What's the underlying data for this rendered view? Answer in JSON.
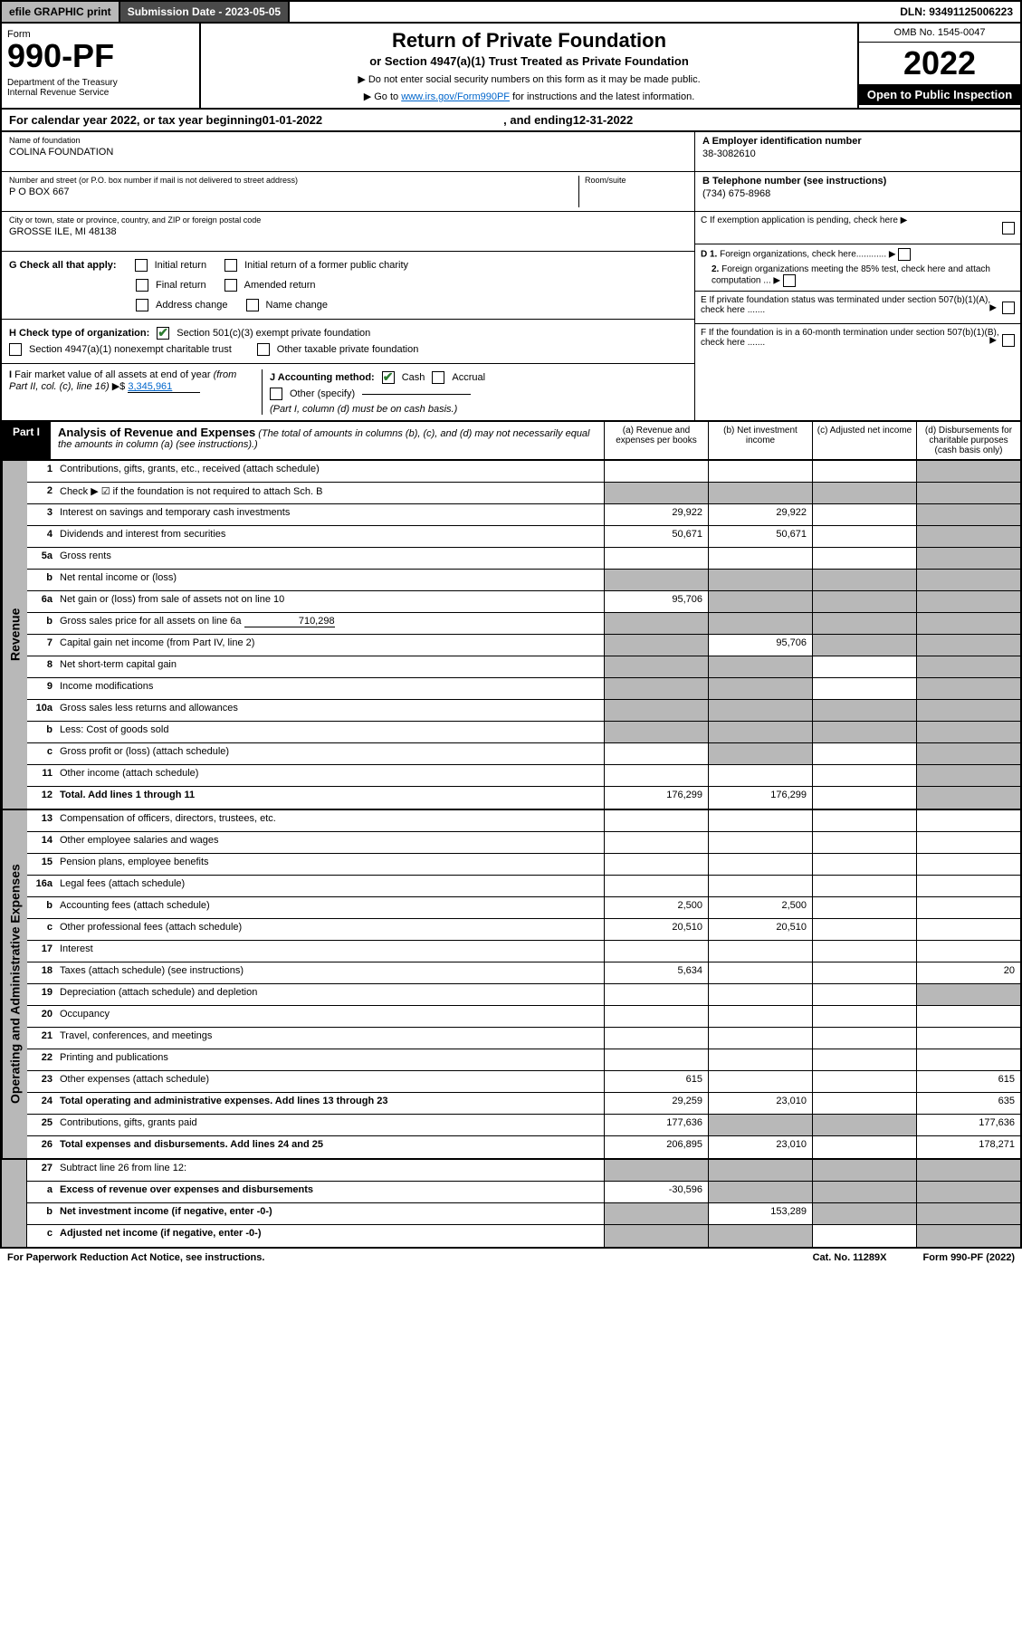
{
  "topbar": {
    "efile": "efile GRAPHIC print",
    "submission_label": "Submission Date - 2023-05-05",
    "dln": "DLN: 93491125006223"
  },
  "header": {
    "form_word": "Form",
    "form_number": "990-PF",
    "dept": "Department of the Treasury\nInternal Revenue Service",
    "title": "Return of Private Foundation",
    "subtitle": "or Section 4947(a)(1) Trust Treated as Private Foundation",
    "instr1": "▶ Do not enter social security numbers on this form as it may be made public.",
    "instr2_pre": "▶ Go to ",
    "instr2_link": "www.irs.gov/Form990PF",
    "instr2_post": " for instructions and the latest information.",
    "omb": "OMB No. 1545-0047",
    "year": "2022",
    "inspection": "Open to Public Inspection"
  },
  "calendar": {
    "text_pre": "For calendar year 2022, or tax year beginning ",
    "begin": "01-01-2022",
    "text_mid": ", and ending ",
    "end": "12-31-2022"
  },
  "foundation": {
    "name_label": "Name of foundation",
    "name": "COLINA FOUNDATION",
    "address_label": "Number and street (or P.O. box number if mail is not delivered to street address)",
    "room_label": "Room/suite",
    "address": "P O BOX 667",
    "city_label": "City or town, state or province, country, and ZIP or foreign postal code",
    "city": "GROSSE ILE, MI  48138",
    "ein_label": "A Employer identification number",
    "ein": "38-3082610",
    "phone_label": "B Telephone number (see instructions)",
    "phone": "(734) 675-8968"
  },
  "checks": {
    "g_label": "G Check all that apply:",
    "initial_return": "Initial return",
    "initial_former": "Initial return of a former public charity",
    "final_return": "Final return",
    "amended": "Amended return",
    "address_change": "Address change",
    "name_change": "Name change",
    "h_label": "H Check type of organization:",
    "h_501c3": "Section 501(c)(3) exempt private foundation",
    "h_4947": "Section 4947(a)(1) nonexempt charitable trust",
    "h_other_taxable": "Other taxable private foundation",
    "i_label": "I Fair market value of all assets at end of year (from Part II, col. (c), line 16) ▶$",
    "i_value": "3,345,961",
    "j_label": "J Accounting method:",
    "j_cash": "Cash",
    "j_accrual": "Accrual",
    "j_other": "Other (specify)",
    "j_note": "(Part I, column (d) must be on cash basis.)"
  },
  "right_boxes": {
    "c": "C If exemption application is pending, check here ▶",
    "d1": "D 1. Foreign organizations, check here............",
    "d2": "2. Foreign organizations meeting the 85% test, check here and attach computation ...",
    "e": "E If private foundation status was terminated under section 507(b)(1)(A), check here .......",
    "f": "F If the foundation is in a 60-month termination under section 507(b)(1)(B), check here ......."
  },
  "part1": {
    "label": "Part I",
    "title": "Analysis of Revenue and Expenses",
    "note": "(The total of amounts in columns (b), (c), and (d) may not necessarily equal the amounts in column (a) (see instructions).)",
    "col_a": "(a) Revenue and expenses per books",
    "col_b": "(b) Net investment income",
    "col_c": "(c) Adjusted net income",
    "col_d": "(d) Disbursements for charitable purposes (cash basis only)"
  },
  "side_labels": {
    "revenue": "Revenue",
    "expenses": "Operating and Administrative Expenses"
  },
  "rows": [
    {
      "n": "1",
      "label": "Contributions, gifts, grants, etc., received (attach schedule)",
      "a": "",
      "b": "",
      "c": "",
      "d": "",
      "shade_d": true
    },
    {
      "n": "2",
      "label": "Check ▶ ☑ if the foundation is not required to attach Sch. B",
      "a": "",
      "b": "",
      "c": "",
      "d": "",
      "shade_all": true,
      "shade_d": true
    },
    {
      "n": "3",
      "label": "Interest on savings and temporary cash investments",
      "a": "29,922",
      "b": "29,922",
      "c": "",
      "d": "",
      "shade_d": true
    },
    {
      "n": "4",
      "label": "Dividends and interest from securities",
      "a": "50,671",
      "b": "50,671",
      "c": "",
      "d": "",
      "shade_d": true
    },
    {
      "n": "5a",
      "label": "Gross rents",
      "a": "",
      "b": "",
      "c": "",
      "d": "",
      "shade_d": true
    },
    {
      "n": "b",
      "label": "Net rental income or (loss)",
      "a": "",
      "b": "",
      "c": "",
      "d": "",
      "shade_all": true,
      "shade_d": true
    },
    {
      "n": "6a",
      "label": "Net gain or (loss) from sale of assets not on line 10",
      "a": "95,706",
      "b": "",
      "c": "",
      "d": "",
      "shade_b": true,
      "shade_c": true,
      "shade_d": true
    },
    {
      "n": "b",
      "label": "Gross sales price for all assets on line 6a",
      "inline_val": "710,298",
      "a": "",
      "b": "",
      "c": "",
      "d": "",
      "shade_all": true,
      "shade_d": true
    },
    {
      "n": "7",
      "label": "Capital gain net income (from Part IV, line 2)",
      "a": "",
      "b": "95,706",
      "c": "",
      "d": "",
      "shade_a": true,
      "shade_c": true,
      "shade_d": true
    },
    {
      "n": "8",
      "label": "Net short-term capital gain",
      "a": "",
      "b": "",
      "c": "",
      "d": "",
      "shade_a": true,
      "shade_b": true,
      "shade_d": true
    },
    {
      "n": "9",
      "label": "Income modifications",
      "a": "",
      "b": "",
      "c": "",
      "d": "",
      "shade_a": true,
      "shade_b": true,
      "shade_d": true
    },
    {
      "n": "10a",
      "label": "Gross sales less returns and allowances",
      "a": "",
      "b": "",
      "c": "",
      "d": "",
      "shade_all": true,
      "shade_d": true
    },
    {
      "n": "b",
      "label": "Less: Cost of goods sold",
      "a": "",
      "b": "",
      "c": "",
      "d": "",
      "shade_all": true,
      "shade_d": true
    },
    {
      "n": "c",
      "label": "Gross profit or (loss) (attach schedule)",
      "a": "",
      "b": "",
      "c": "",
      "d": "",
      "shade_b": true,
      "shade_d": true
    },
    {
      "n": "11",
      "label": "Other income (attach schedule)",
      "a": "",
      "b": "",
      "c": "",
      "d": "",
      "shade_d": true
    },
    {
      "n": "12",
      "label": "Total. Add lines 1 through 11",
      "bold": true,
      "a": "176,299",
      "b": "176,299",
      "c": "",
      "d": "",
      "shade_d": true
    }
  ],
  "exp_rows": [
    {
      "n": "13",
      "label": "Compensation of officers, directors, trustees, etc.",
      "a": "",
      "b": "",
      "c": "",
      "d": ""
    },
    {
      "n": "14",
      "label": "Other employee salaries and wages",
      "a": "",
      "b": "",
      "c": "",
      "d": ""
    },
    {
      "n": "15",
      "label": "Pension plans, employee benefits",
      "a": "",
      "b": "",
      "c": "",
      "d": ""
    },
    {
      "n": "16a",
      "label": "Legal fees (attach schedule)",
      "a": "",
      "b": "",
      "c": "",
      "d": ""
    },
    {
      "n": "b",
      "label": "Accounting fees (attach schedule)",
      "a": "2,500",
      "b": "2,500",
      "c": "",
      "d": ""
    },
    {
      "n": "c",
      "label": "Other professional fees (attach schedule)",
      "a": "20,510",
      "b": "20,510",
      "c": "",
      "d": ""
    },
    {
      "n": "17",
      "label": "Interest",
      "a": "",
      "b": "",
      "c": "",
      "d": ""
    },
    {
      "n": "18",
      "label": "Taxes (attach schedule) (see instructions)",
      "a": "5,634",
      "b": "",
      "c": "",
      "d": "20"
    },
    {
      "n": "19",
      "label": "Depreciation (attach schedule) and depletion",
      "a": "",
      "b": "",
      "c": "",
      "d": "",
      "shade_d": true
    },
    {
      "n": "20",
      "label": "Occupancy",
      "a": "",
      "b": "",
      "c": "",
      "d": ""
    },
    {
      "n": "21",
      "label": "Travel, conferences, and meetings",
      "a": "",
      "b": "",
      "c": "",
      "d": ""
    },
    {
      "n": "22",
      "label": "Printing and publications",
      "a": "",
      "b": "",
      "c": "",
      "d": ""
    },
    {
      "n": "23",
      "label": "Other expenses (attach schedule)",
      "a": "615",
      "b": "",
      "c": "",
      "d": "615"
    },
    {
      "n": "24",
      "label": "Total operating and administrative expenses. Add lines 13 through 23",
      "bold": true,
      "a": "29,259",
      "b": "23,010",
      "c": "",
      "d": "635"
    },
    {
      "n": "25",
      "label": "Contributions, gifts, grants paid",
      "a": "177,636",
      "b": "",
      "c": "",
      "d": "177,636",
      "shade_b": true,
      "shade_c": true
    },
    {
      "n": "26",
      "label": "Total expenses and disbursements. Add lines 24 and 25",
      "bold": true,
      "a": "206,895",
      "b": "23,010",
      "c": "",
      "d": "178,271"
    }
  ],
  "bottom_rows": [
    {
      "n": "27",
      "label": "Subtract line 26 from line 12:",
      "a": "",
      "b": "",
      "c": "",
      "d": "",
      "shade_all": true
    },
    {
      "n": "a",
      "label": "Excess of revenue over expenses and disbursements",
      "bold": true,
      "a": "-30,596",
      "b": "",
      "c": "",
      "d": "",
      "shade_b": true,
      "shade_c": true,
      "shade_d": true
    },
    {
      "n": "b",
      "label": "Net investment income (if negative, enter -0-)",
      "bold": true,
      "a": "",
      "b": "153,289",
      "c": "",
      "d": "",
      "shade_a": true,
      "shade_c": true,
      "shade_d": true
    },
    {
      "n": "c",
      "label": "Adjusted net income (if negative, enter -0-)",
      "bold": true,
      "a": "",
      "b": "",
      "c": "",
      "d": "",
      "shade_a": true,
      "shade_b": true,
      "shade_d": true
    }
  ],
  "footer": {
    "left": "For Paperwork Reduction Act Notice, see instructions.",
    "mid": "Cat. No. 11289X",
    "right": "Form 990-PF (2022)"
  }
}
